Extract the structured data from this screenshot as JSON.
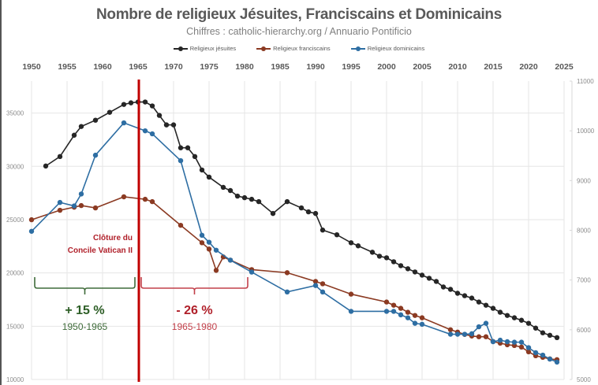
{
  "chart_data": {
    "type": "line",
    "title": "Nombre de religieux Jésuites, Franciscains et Dominicains",
    "subtitle": "Chiffres : catholic-hierarchy.org / Annuario Pontificio",
    "legend_position": "top-center",
    "x_axis": {
      "position": "top",
      "range": [
        1950,
        2025
      ],
      "ticks": [
        1950,
        1955,
        1960,
        1965,
        1970,
        1975,
        1980,
        1985,
        1990,
        1995,
        2000,
        2005,
        2010,
        2015,
        2020,
        2025
      ]
    },
    "y_left": {
      "range": [
        10000,
        38000
      ],
      "ticks": [
        10000,
        15000,
        20000,
        25000,
        30000,
        35000
      ]
    },
    "y_right": {
      "range": [
        5000,
        11000
      ],
      "ticks": [
        5000,
        6000,
        7000,
        8000,
        9000,
        10000,
        11000
      ]
    },
    "grid": true,
    "series": [
      {
        "name": "Religieux jésuites",
        "color": "#262626",
        "axis": "left",
        "x": [
          1952,
          1954,
          1956,
          1957,
          1959,
          1961,
          1963,
          1964,
          1965,
          1966,
          1967,
          1968,
          1969,
          1970,
          1971,
          1972,
          1973,
          1974,
          1975,
          1977,
          1978,
          1979,
          1980,
          1981,
          1982,
          1984,
          1986,
          1988,
          1989,
          1990,
          1991,
          1993,
          1995,
          1996,
          1998,
          1999,
          2000,
          2001,
          2002,
          2003,
          2004,
          2005,
          2006,
          2007,
          2008,
          2009,
          2010,
          2011,
          2012,
          2013,
          2014,
          2015,
          2016,
          2017,
          2018,
          2019,
          2020,
          2021,
          2022,
          2023,
          2024
        ],
        "y": [
          30030,
          30920,
          32920,
          33740,
          34330,
          35070,
          35810,
          35960,
          36040,
          36040,
          35670,
          34780,
          33890,
          33890,
          31740,
          31740,
          30920,
          29660,
          28990,
          28030,
          27730,
          27210,
          27060,
          26910,
          26690,
          25580,
          26690,
          26100,
          25730,
          25580,
          24020,
          23580,
          22830,
          22540,
          21940,
          21570,
          21420,
          21050,
          20680,
          20390,
          20090,
          19790,
          19500,
          19200,
          18680,
          18460,
          18090,
          17860,
          17640,
          17270,
          16970,
          16680,
          16310,
          16010,
          15790,
          15560,
          15270,
          14820,
          14380,
          14150,
          13930
        ]
      },
      {
        "name": "Religieux franciscains",
        "color": "#8b3a22",
        "axis": "left",
        "x": [
          1950,
          1954,
          1956,
          1957,
          1959,
          1963,
          1966,
          1967,
          1971,
          1974,
          1975,
          1976,
          1977,
          1978,
          1981,
          1986,
          1990,
          1991,
          1995,
          2000,
          2001,
          2002,
          2003,
          2004,
          2005,
          2009,
          2010,
          2011,
          2012,
          2013,
          2014,
          2015,
          2016,
          2017,
          2018,
          2019,
          2020,
          2021,
          2022,
          2023,
          2024
        ],
        "y": [
          24990,
          25880,
          26170,
          26320,
          26100,
          27140,
          26910,
          26690,
          24470,
          22830,
          22240,
          20240,
          21500,
          21200,
          20310,
          20020,
          19200,
          18980,
          18010,
          17270,
          16970,
          16680,
          16310,
          16010,
          15790,
          14670,
          14450,
          14230,
          14080,
          14010,
          14010,
          13560,
          13410,
          13260,
          13190,
          13040,
          12600,
          12230,
          12080,
          11930,
          11860
        ]
      },
      {
        "name": "Religieux dominicains",
        "color": "#2e6ea3",
        "axis": "right",
        "x": [
          1950,
          1954,
          1956,
          1957,
          1959,
          1963,
          1966,
          1967,
          1971,
          1974,
          1975,
          1976,
          1978,
          1981,
          1986,
          1990,
          1991,
          1995,
          2000,
          2001,
          2002,
          2003,
          2004,
          2005,
          2009,
          2010,
          2011,
          2012,
          2013,
          2014,
          2015,
          2016,
          2017,
          2018,
          2019,
          2020,
          2021,
          2022,
          2023,
          2024
        ],
        "y": [
          7980,
          8560,
          8490,
          8730,
          9510,
          10160,
          10000,
          9940,
          9400,
          7900,
          7760,
          7600,
          7400,
          7160,
          6760,
          6890,
          6760,
          6370,
          6370,
          6370,
          6300,
          6240,
          6130,
          6110,
          5910,
          5910,
          5910,
          5920,
          6060,
          6130,
          5760,
          5790,
          5760,
          5750,
          5750,
          5640,
          5540,
          5490,
          5410,
          5350
        ]
      }
    ],
    "annotations": {
      "event_year": 1965,
      "event_color": "#c00000",
      "event_label_line1": "Clôture du",
      "event_label_line2": "Concile Vatican II",
      "periods": [
        {
          "from": 1950,
          "to": 1965,
          "pct": "+ 15 %",
          "label": "1950-1965",
          "color": "#3f6b3a",
          "pct_color": "#2d5e26"
        },
        {
          "from": 1965,
          "to": 1980,
          "pct": "- 26 %",
          "label": "1965-1980",
          "color": "#c2404a",
          "pct_color": "#b0202a"
        }
      ]
    }
  }
}
